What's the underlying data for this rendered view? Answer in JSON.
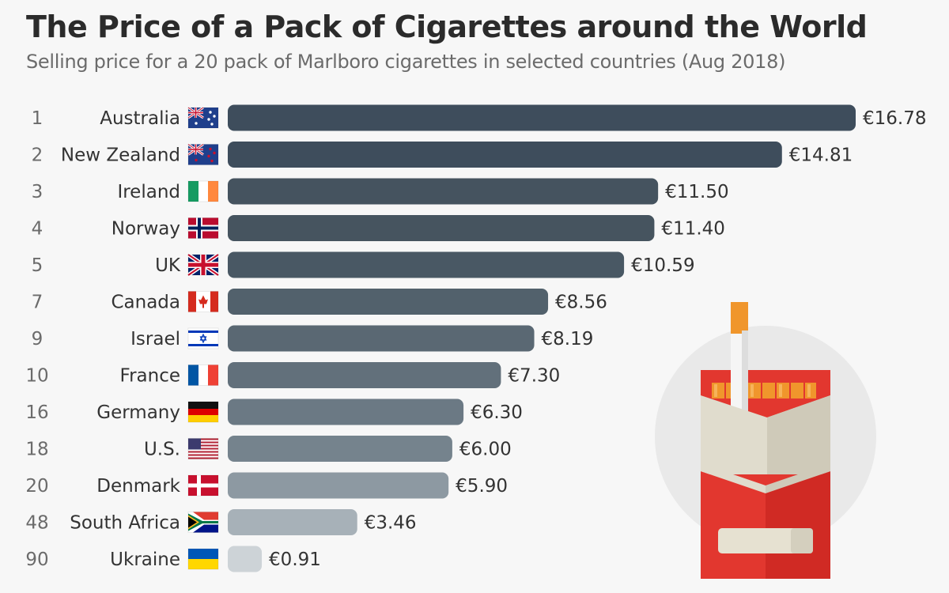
{
  "header": {
    "title": "The Price of a Pack of Cigarettes around the World",
    "subtitle": "Selling price for a 20 pack of Marlboro cigarettes in selected countries (Aug 2018)"
  },
  "chart_data": {
    "type": "bar",
    "orientation": "horizontal",
    "currency_prefix": "€",
    "value_unit": "EUR",
    "xlim": [
      0,
      16.78
    ],
    "grid": false,
    "legend": "none",
    "rows": [
      {
        "rank": "1",
        "country": "Australia",
        "value": 16.78,
        "value_label": "€16.78",
        "flag": "australia-flag-icon",
        "color": "#3e4d5c"
      },
      {
        "rank": "2",
        "country": "New Zealand",
        "value": 14.81,
        "value_label": "€14.81",
        "flag": "new-zealand-flag-icon",
        "color": "#3e4d5c"
      },
      {
        "rank": "3",
        "country": "Ireland",
        "value": 11.5,
        "value_label": "€11.50",
        "flag": "ireland-flag-icon",
        "color": "#45535f"
      },
      {
        "rank": "4",
        "country": "Norway",
        "value": 11.4,
        "value_label": "€11.40",
        "flag": "norway-flag-icon",
        "color": "#46545f"
      },
      {
        "rank": "5",
        "country": "UK",
        "value": 10.59,
        "value_label": "€10.59",
        "flag": "uk-flag-icon",
        "color": "#495864"
      },
      {
        "rank": "7",
        "country": "Canada",
        "value": 8.56,
        "value_label": "€8.56",
        "flag": "canada-flag-icon",
        "color": "#52616c"
      },
      {
        "rank": "9",
        "country": "Israel",
        "value": 8.19,
        "value_label": "€8.19",
        "flag": "israel-flag-icon",
        "color": "#5a6873"
      },
      {
        "rank": "10",
        "country": "France",
        "value": 7.3,
        "value_label": "€7.30",
        "flag": "france-flag-icon",
        "color": "#62707b"
      },
      {
        "rank": "16",
        "country": "Germany",
        "value": 6.3,
        "value_label": "€6.30",
        "flag": "germany-flag-icon",
        "color": "#6b7984"
      },
      {
        "rank": "18",
        "country": "U.S.",
        "value": 6.0,
        "value_label": "€6.00",
        "flag": "us-flag-icon",
        "color": "#75838d"
      },
      {
        "rank": "20",
        "country": "Denmark",
        "value": 5.9,
        "value_label": "€5.90",
        "flag": "denmark-flag-icon",
        "color": "#8d99a2"
      },
      {
        "rank": "48",
        "country": "South Africa",
        "value": 3.46,
        "value_label": "€3.46",
        "flag": "south-africa-flag-icon",
        "color": "#a7b1b8"
      },
      {
        "rank": "90",
        "country": "Ukraine",
        "value": 0.91,
        "value_label": "€0.91",
        "flag": "ukraine-flag-icon",
        "color": "#cdd3d7"
      }
    ]
  },
  "illustration": {
    "icon": "cigarette-pack-icon"
  }
}
